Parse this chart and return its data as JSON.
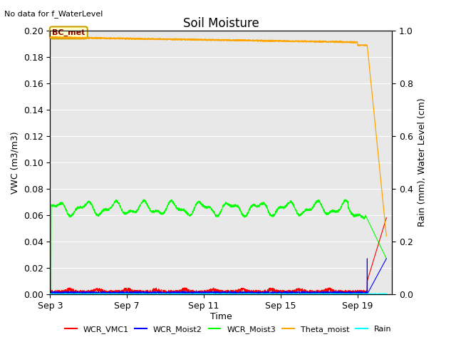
{
  "title": "Soil Moisture",
  "top_left_text": "No data for f_WaterLevel",
  "ylabel_left": "VWC (m3/m3)",
  "ylabel_right": "Rain (mm), Water Level (cm)",
  "xlabel": "Time",
  "ylim_left": [
    0.0,
    0.2
  ],
  "ylim_right": [
    0.0,
    1.0
  ],
  "bg_color": "#e8e8e8",
  "legend_entries": [
    "WCR_VMC1",
    "WCR_Moist2",
    "WCR_Moist3",
    "Theta_moist",
    "Rain"
  ],
  "legend_colors": [
    "red",
    "blue",
    "lime",
    "orange",
    "cyan"
  ],
  "annotation_text": "BC_met",
  "x_ticks": [
    3,
    7,
    11,
    15,
    19
  ],
  "x_tick_labels": [
    "Sep 3",
    "Sep 7",
    "Sep 11",
    "Sep 15",
    "Sep 19"
  ],
  "x_min": 3,
  "x_max": 20.8,
  "yticks_left": [
    0.0,
    0.02,
    0.04,
    0.06,
    0.08,
    0.1,
    0.12,
    0.14,
    0.16,
    0.18,
    0.2
  ],
  "yticks_right": [
    0.0,
    0.2,
    0.4,
    0.6,
    0.8,
    1.0
  ]
}
